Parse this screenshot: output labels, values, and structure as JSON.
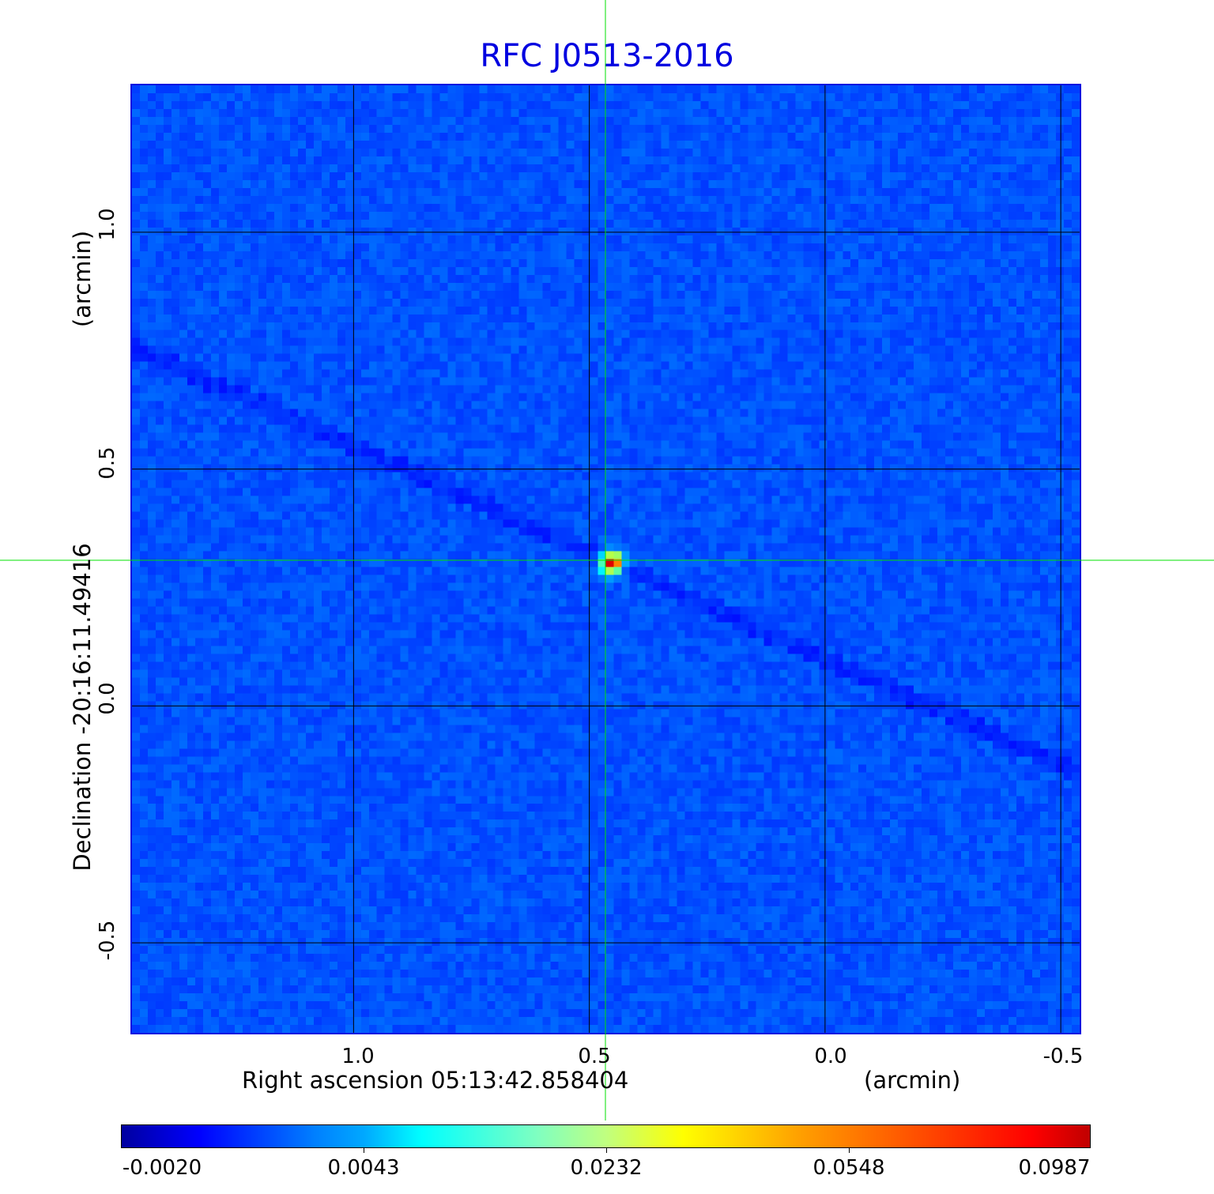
{
  "chart_data": {
    "type": "heatmap",
    "title": "RFC J0513-2016",
    "xlabel": "Right ascension  05:13:42.858404",
    "xunit": "(arcmin)",
    "ylabel": "Declination  -20:16:11.49416",
    "yunit": "(arcmin)",
    "x_ticks": [
      "1.0",
      "0.5",
      "0.0",
      "-0.5"
    ],
    "y_ticks": [
      "1.0",
      "0.5",
      "0.0",
      "-0.5"
    ],
    "xlim": [
      1.47,
      -0.54
    ],
    "ylim": [
      -0.69,
      1.31
    ],
    "grid": true,
    "grid_color": "#000000",
    "crosshair_color": "#00e000",
    "crosshair": {
      "x": 0.46,
      "y": 0.31
    },
    "source_peak": {
      "x": 0.46,
      "y": 0.31,
      "value": 0.0987
    },
    "colormap": "jet",
    "colorbar": {
      "position": "bottom",
      "ticks": [
        "-0.0020",
        "0.0043",
        "0.0232",
        "0.0548",
        "0.0987"
      ],
      "range": [
        -0.002,
        0.0987
      ]
    },
    "title_color": "#0000e0"
  }
}
